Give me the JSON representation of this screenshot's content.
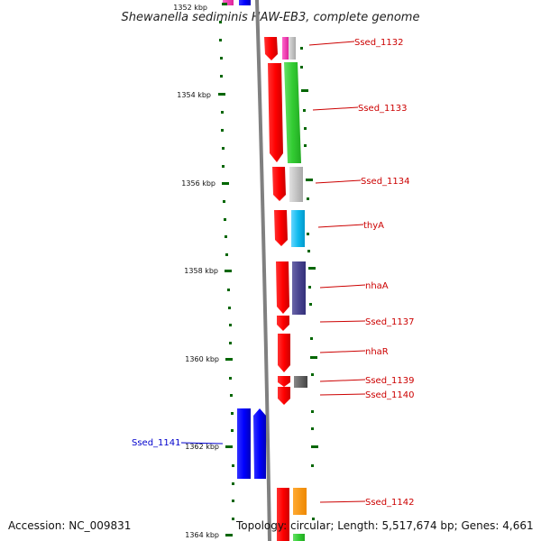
{
  "title": "Shewanella sediminis HAW-EB3, complete genome",
  "accession": "Accession: NC_009831",
  "summary": "Topology: circular; Length: 5,517,674 bp; Genes: 4,661",
  "kbp_labels": [
    "1352 kbp",
    "1354 kbp",
    "1356 kbp",
    "1358 kbp",
    "1360 kbp",
    "1362 kbp",
    "1364 kbp"
  ],
  "genes": [
    {
      "name": "Ssed_1132",
      "color": "#cc0000"
    },
    {
      "name": "Ssed_1133",
      "color": "#cc0000"
    },
    {
      "name": "Ssed_1134",
      "color": "#cc0000"
    },
    {
      "name": "thyA",
      "color": "#cc0000"
    },
    {
      "name": "nhaA",
      "color": "#cc0000"
    },
    {
      "name": "Ssed_1137",
      "color": "#cc0000"
    },
    {
      "name": "nhaR",
      "color": "#cc0000"
    },
    {
      "name": "Ssed_1139",
      "color": "#cc0000"
    },
    {
      "name": "Ssed_1140",
      "color": "#cc0000"
    },
    {
      "name": "Ssed_1141",
      "color": "#0000cc"
    },
    {
      "name": "Ssed_1142",
      "color": "#cc0000"
    }
  ],
  "colors": {
    "forward_strand": "#ff0000",
    "reverse_strand": "#0000ff",
    "backbone": "#808080",
    "tick": "#006600"
  }
}
